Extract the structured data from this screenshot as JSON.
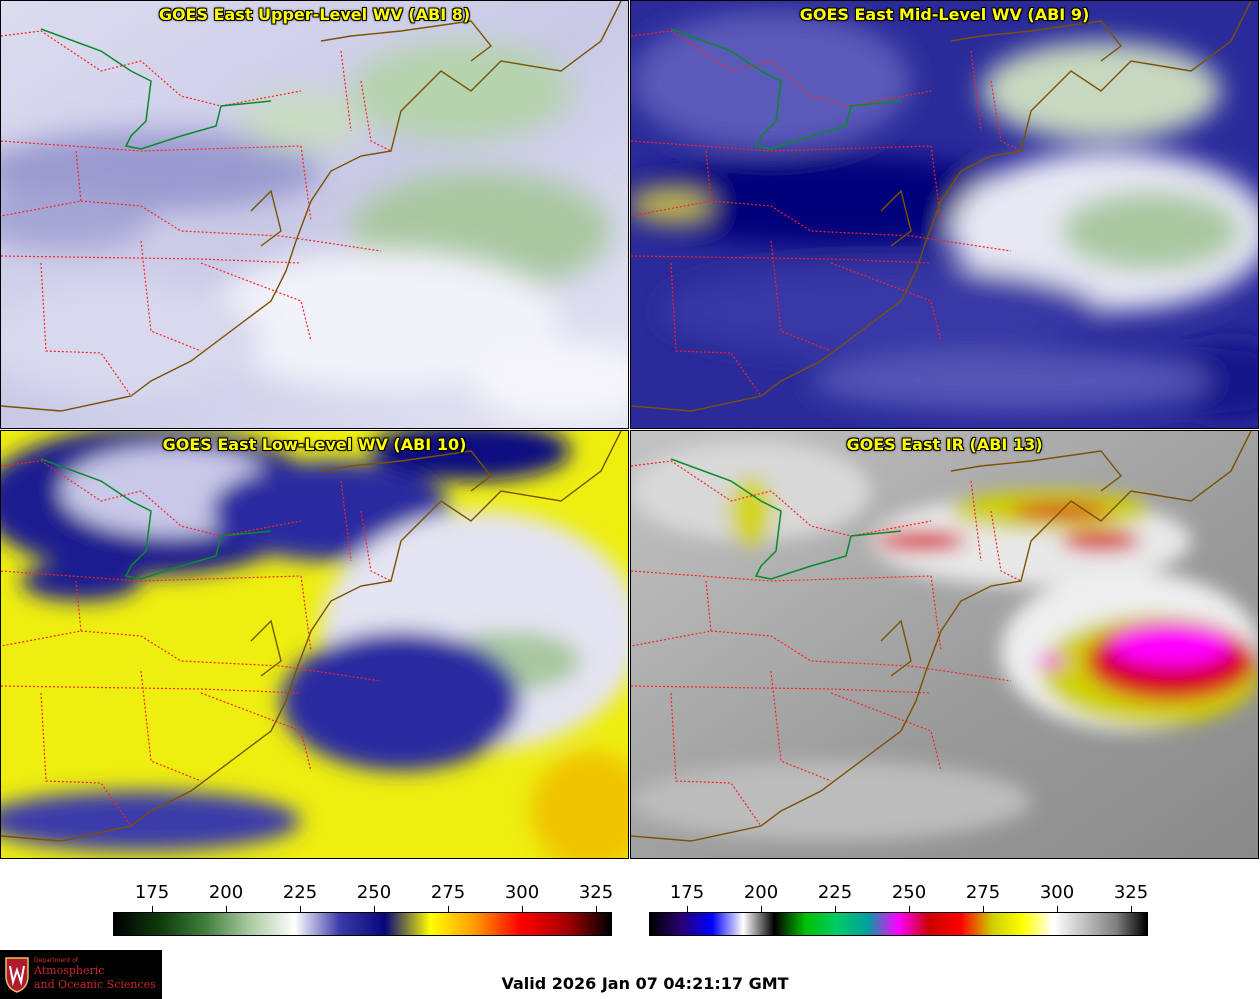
{
  "panels": [
    {
      "title": "GOES East Upper-Level WV (ABI 8)"
    },
    {
      "title": "GOES East Mid-Level WV (ABI 9)"
    },
    {
      "title": "GOES East Low-Level WV (ABI 10)"
    },
    {
      "title": "GOES East IR (ABI 13)"
    }
  ],
  "colorbars": [
    {
      "name": "water-vapor",
      "ticks": [
        "175",
        "200",
        "225",
        "250",
        "275",
        "300",
        "325"
      ],
      "stops": [
        "#000000",
        "#0d3a0d",
        "#3f7d3a",
        "#a8c9a0",
        "#ffffff",
        "#3a3aa8",
        "#06067a",
        "#ffff00",
        "#ff9900",
        "#ff0000",
        "#aa0000",
        "#000000"
      ]
    },
    {
      "name": "infrared",
      "ticks": [
        "175",
        "200",
        "225",
        "250",
        "275",
        "300",
        "325"
      ],
      "stops": [
        "#000000",
        "#2a0070",
        "#0000ff",
        "#ffffff",
        "#000000",
        "#00c000",
        "#00cc66",
        "#00a0a0",
        "#ff00ff",
        "#cc0000",
        "#ff0000",
        "#cccc00",
        "#ffff00",
        "#ffffff",
        "#bfbfbf",
        "#808080",
        "#000000"
      ]
    }
  ],
  "logo": {
    "line1": "Department of",
    "line2": "Atmospheric",
    "line3": "and Oceanic Sciences"
  },
  "valid_time": "Valid 2026 Jan 07 04:21:17 GMT",
  "colors": {
    "title": "#ffff00",
    "state_border": "#ff2020",
    "coast": "#8b5a00",
    "lake_outline": "#0a8a2a"
  }
}
